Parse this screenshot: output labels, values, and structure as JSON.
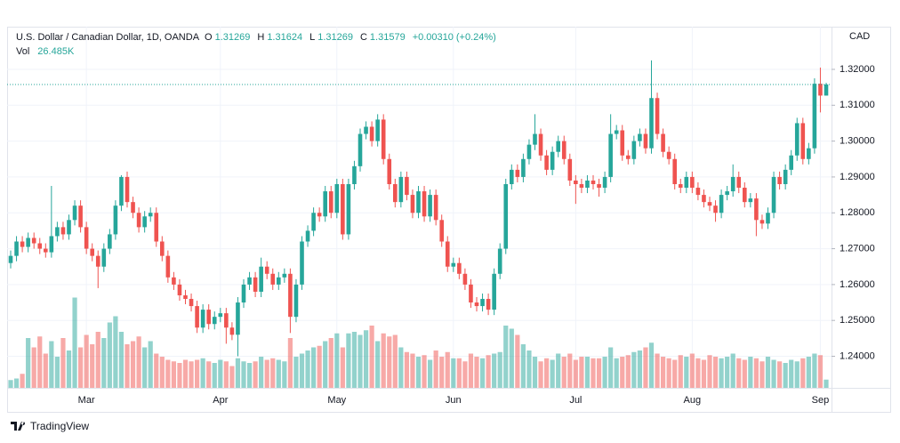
{
  "chart_data": {
    "type": "candlestick",
    "title": "U.S. Dollar / Canadian Dollar, 1D, OANDA",
    "ohlc_labels": [
      "O",
      "H",
      "L",
      "C"
    ],
    "change": "+0.00310",
    "change_pct": "(+0.24%)",
    "volume_name": "Vol",
    "volume_value_label": "26.485K",
    "y_unit": "CAD",
    "up_color": "#26a69a",
    "down_color": "#ef5350",
    "ylim": [
      1.2312,
      1.3319
    ],
    "yticks": [
      {
        "value": 1.24,
        "label": "1.24000"
      },
      {
        "value": 1.25,
        "label": "1.25000"
      },
      {
        "value": 1.26,
        "label": "1.26000"
      },
      {
        "value": 1.27,
        "label": "1.27000"
      },
      {
        "value": 1.28,
        "label": "1.28000"
      },
      {
        "value": 1.29,
        "label": "1.29000"
      },
      {
        "value": 1.3,
        "label": "1.30000"
      },
      {
        "value": 1.31,
        "label": "1.31000"
      },
      {
        "value": 1.32,
        "label": "1.32000"
      }
    ],
    "grid": true,
    "categories": [
      null,
      null,
      null,
      null,
      null,
      null,
      null,
      null,
      null,
      null,
      null,
      null,
      null,
      "Mar",
      null,
      null,
      null,
      null,
      null,
      null,
      null,
      null,
      null,
      null,
      null,
      null,
      null,
      null,
      null,
      null,
      null,
      null,
      null,
      null,
      null,
      null,
      "Apr",
      null,
      null,
      null,
      null,
      null,
      null,
      null,
      null,
      null,
      null,
      null,
      null,
      null,
      null,
      null,
      null,
      null,
      null,
      null,
      "May",
      null,
      null,
      null,
      null,
      null,
      null,
      null,
      null,
      null,
      null,
      null,
      null,
      null,
      null,
      null,
      null,
      null,
      null,
      null,
      "Jun",
      null,
      null,
      null,
      null,
      null,
      null,
      null,
      null,
      null,
      null,
      null,
      null,
      null,
      null,
      null,
      null,
      null,
      null,
      null,
      null,
      "Jul",
      null,
      null,
      null,
      null,
      null,
      null,
      null,
      null,
      null,
      null,
      null,
      null,
      null,
      null,
      null,
      null,
      null,
      null,
      null,
      "Aug",
      null,
      null,
      null,
      null,
      null,
      null,
      null,
      null,
      null,
      null,
      null,
      null,
      null,
      null,
      null,
      null,
      null,
      null,
      null,
      null,
      null,
      "Sep",
      null
    ],
    "open": [
      1.266,
      1.268,
      1.272,
      1.2705,
      1.273,
      1.2715,
      1.27,
      1.269,
      1.2735,
      1.276,
      1.274,
      1.278,
      1.282,
      1.276,
      1.27,
      1.268,
      1.265,
      1.27,
      1.274,
      1.282,
      1.29,
      1.283,
      1.28,
      1.276,
      1.279,
      1.28,
      1.272,
      1.268,
      1.262,
      1.26,
      1.257,
      1.256,
      1.254,
      1.248,
      1.253,
      1.249,
      1.251,
      1.252,
      1.248,
      1.246,
      1.255,
      1.26,
      1.262,
      1.258,
      1.265,
      1.263,
      1.26,
      1.262,
      1.263,
      1.251,
      1.26,
      1.272,
      1.275,
      1.28,
      1.279,
      1.286,
      1.28,
      1.288,
      1.274,
      1.288,
      1.293,
      1.302,
      1.304,
      1.3,
      1.306,
      1.295,
      1.288,
      1.283,
      1.29,
      1.285,
      1.28,
      1.286,
      1.279,
      1.285,
      1.278,
      1.272,
      1.265,
      1.266,
      1.263,
      1.26,
      1.255,
      1.254,
      1.256,
      1.253,
      1.263,
      1.27,
      1.288,
      1.292,
      1.29,
      1.295,
      1.299,
      1.302,
      1.296,
      1.292,
      1.297,
      1.3,
      1.295,
      1.289,
      1.288,
      1.287,
      1.289,
      1.288,
      1.287,
      1.29,
      1.302,
      1.303,
      1.296,
      1.295,
      1.3,
      1.302,
      1.298,
      1.312,
      1.302,
      1.297,
      1.295,
      1.288,
      1.287,
      1.29,
      1.287,
      1.285,
      1.283,
      1.282,
      1.28,
      1.285,
      1.286,
      1.29,
      1.287,
      1.283,
      1.284,
      1.278,
      1.277,
      1.28,
      1.29,
      1.288,
      1.292,
      1.296,
      1.305,
      1.295,
      1.298,
      1.316,
      1.31269
    ],
    "high": [
      1.2695,
      1.2735,
      1.2735,
      1.2745,
      1.2745,
      1.273,
      1.2715,
      1.2875,
      1.2775,
      1.2775,
      1.2795,
      1.2835,
      1.2835,
      1.2775,
      1.2715,
      1.2695,
      1.2715,
      1.2755,
      1.2835,
      1.2905,
      1.2915,
      1.2845,
      1.2815,
      1.2805,
      1.2815,
      1.2815,
      1.2735,
      1.2695,
      1.2635,
      1.2615,
      1.2585,
      1.2575,
      1.2555,
      1.2545,
      1.2545,
      1.2525,
      1.2535,
      1.2535,
      1.2495,
      1.2565,
      1.2615,
      1.2635,
      1.2635,
      1.2675,
      1.2665,
      1.2645,
      1.2635,
      1.2645,
      1.2645,
      1.2615,
      1.2735,
      1.2765,
      1.2815,
      1.2815,
      1.2875,
      1.2875,
      1.2895,
      1.2895,
      1.2895,
      1.2945,
      1.3035,
      1.3055,
      1.3055,
      1.3075,
      1.3075,
      1.2965,
      1.2895,
      1.2915,
      1.2915,
      1.2865,
      1.2875,
      1.2875,
      1.2865,
      1.2865,
      1.2795,
      1.2735,
      1.2675,
      1.2675,
      1.2645,
      1.2615,
      1.2565,
      1.2575,
      1.2575,
      1.2645,
      1.2715,
      1.2895,
      1.2935,
      1.2935,
      1.2965,
      1.3005,
      1.3075,
      1.3035,
      1.2975,
      1.2985,
      1.3015,
      1.3015,
      1.2965,
      1.2905,
      1.2895,
      1.2905,
      1.2905,
      1.2895,
      1.2915,
      1.3075,
      1.3045,
      1.3045,
      1.2975,
      1.3015,
      1.3035,
      1.3035,
      1.3225,
      1.3135,
      1.3035,
      1.2985,
      1.2965,
      1.2895,
      1.2915,
      1.2915,
      1.2885,
      1.2865,
      1.2845,
      1.2835,
      1.2865,
      1.2875,
      1.2935,
      1.2915,
      1.2885,
      1.2855,
      1.2855,
      1.2795,
      1.2815,
      1.2915,
      1.2915,
      1.2935,
      1.2975,
      1.3065,
      1.3065,
      1.2995,
      1.3175,
      1.3205,
      1.31624
    ],
    "low": [
      1.2645,
      1.2665,
      1.269,
      1.269,
      1.27,
      1.2685,
      1.2675,
      1.2675,
      1.272,
      1.2725,
      1.2725,
      1.2765,
      1.2745,
      1.2685,
      1.2665,
      1.259,
      1.2635,
      1.2685,
      1.2725,
      1.2805,
      1.2815,
      1.2785,
      1.2745,
      1.2745,
      1.2775,
      1.2705,
      1.2665,
      1.2605,
      1.2585,
      1.2555,
      1.2545,
      1.2525,
      1.2465,
      1.2465,
      1.2475,
      1.2475,
      1.2495,
      1.2435,
      1.2445,
      1.24,
      1.2535,
      1.2585,
      1.2565,
      1.2565,
      1.2615,
      1.2585,
      1.2585,
      1.2605,
      1.2465,
      1.2495,
      1.2585,
      1.2705,
      1.2735,
      1.2775,
      1.2775,
      1.2785,
      1.2785,
      1.2725,
      1.2725,
      1.2865,
      1.2915,
      1.3005,
      1.2985,
      1.2985,
      1.2935,
      1.2865,
      1.2815,
      1.2815,
      1.2835,
      1.2785,
      1.2785,
      1.2775,
      1.2775,
      1.2765,
      1.2705,
      1.2635,
      1.2635,
      1.2615,
      1.2585,
      1.2535,
      1.2525,
      1.2525,
      1.2515,
      1.2515,
      1.2615,
      1.2685,
      1.2865,
      1.2885,
      1.2885,
      1.2935,
      1.2975,
      1.2945,
      1.2905,
      1.2905,
      1.2955,
      1.2935,
      1.2875,
      1.2825,
      1.2855,
      1.2855,
      1.2865,
      1.2845,
      1.2855,
      1.2885,
      1.3005,
      1.2945,
      1.2935,
      1.2935,
      1.2985,
      1.2965,
      1.2965,
      1.3005,
      1.2955,
      1.2935,
      1.2865,
      1.2855,
      1.2855,
      1.2855,
      1.2835,
      1.2815,
      1.2805,
      1.2775,
      1.2785,
      1.2835,
      1.2845,
      1.2855,
      1.2815,
      1.2815,
      1.2735,
      1.2755,
      1.2755,
      1.2785,
      1.2865,
      1.2865,
      1.2905,
      1.2945,
      1.2935,
      1.2935,
      1.2965,
      1.308,
      1.31269
    ],
    "close": [
      1.268,
      1.272,
      1.2705,
      1.273,
      1.2715,
      1.27,
      1.269,
      1.2735,
      1.276,
      1.274,
      1.278,
      1.282,
      1.276,
      1.27,
      1.268,
      1.265,
      1.27,
      1.274,
      1.282,
      1.29,
      1.283,
      1.28,
      1.276,
      1.279,
      1.28,
      1.272,
      1.268,
      1.262,
      1.26,
      1.257,
      1.256,
      1.254,
      1.248,
      1.253,
      1.249,
      1.251,
      1.252,
      1.248,
      1.246,
      1.255,
      1.26,
      1.262,
      1.258,
      1.265,
      1.263,
      1.26,
      1.262,
      1.263,
      1.251,
      1.26,
      1.272,
      1.275,
      1.28,
      1.279,
      1.286,
      1.28,
      1.288,
      1.274,
      1.288,
      1.293,
      1.302,
      1.304,
      1.3,
      1.306,
      1.295,
      1.288,
      1.283,
      1.29,
      1.285,
      1.28,
      1.286,
      1.279,
      1.285,
      1.278,
      1.272,
      1.265,
      1.266,
      1.263,
      1.26,
      1.255,
      1.254,
      1.256,
      1.253,
      1.263,
      1.27,
      1.288,
      1.292,
      1.29,
      1.295,
      1.299,
      1.302,
      1.296,
      1.292,
      1.297,
      1.3,
      1.295,
      1.289,
      1.288,
      1.287,
      1.289,
      1.288,
      1.287,
      1.29,
      1.302,
      1.303,
      1.296,
      1.295,
      1.3,
      1.302,
      1.298,
      1.312,
      1.302,
      1.297,
      1.295,
      1.288,
      1.287,
      1.29,
      1.287,
      1.285,
      1.283,
      1.282,
      1.28,
      1.285,
      1.286,
      1.29,
      1.287,
      1.283,
      1.284,
      1.278,
      1.277,
      1.28,
      1.29,
      1.288,
      1.292,
      1.296,
      1.305,
      1.295,
      1.298,
      1.316,
      1.31269,
      1.31579
    ],
    "volume": [
      25,
      30,
      45,
      160,
      130,
      165,
      110,
      150,
      100,
      160,
      120,
      290,
      130,
      170,
      140,
      180,
      160,
      210,
      230,
      180,
      140,
      150,
      165,
      130,
      150,
      110,
      100,
      90,
      85,
      80,
      90,
      85,
      90,
      95,
      85,
      80,
      90,
      85,
      70,
      95,
      85,
      80,
      85,
      100,
      90,
      95,
      90,
      85,
      160,
      100,
      110,
      120,
      130,
      135,
      150,
      160,
      175,
      130,
      175,
      180,
      170,
      185,
      200,
      150,
      175,
      165,
      170,
      130,
      115,
      110,
      100,
      105,
      90,
      120,
      100,
      115,
      95,
      95,
      85,
      110,
      100,
      95,
      105,
      110,
      115,
      200,
      190,
      170,
      140,
      120,
      100,
      85,
      95,
      90,
      110,
      100,
      110,
      90,
      100,
      100,
      95,
      95,
      100,
      130,
      95,
      100,
      105,
      115,
      120,
      130,
      145,
      110,
      100,
      95,
      90,
      105,
      100,
      110,
      95,
      90,
      105,
      100,
      95,
      100,
      110,
      95,
      90,
      100,
      95,
      85,
      100,
      90,
      85,
      80,
      90,
      85,
      95,
      100,
      110,
      105,
      26.485
    ]
  },
  "footer": {
    "brand": "TradingView"
  }
}
